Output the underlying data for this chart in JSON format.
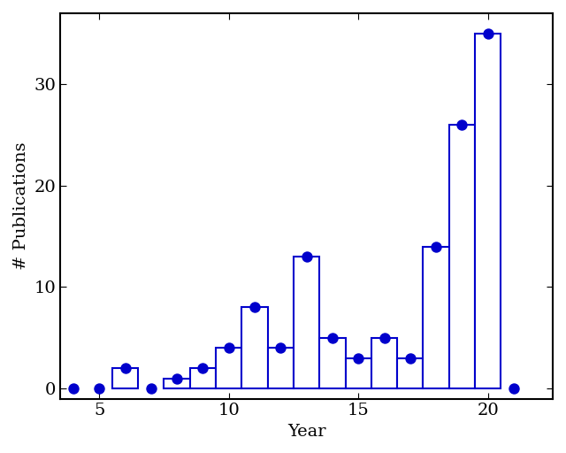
{
  "years": [
    4,
    5,
    6,
    7,
    8,
    9,
    10,
    11,
    12,
    13,
    14,
    15,
    16,
    17,
    18,
    19,
    20,
    21
  ],
  "values": [
    0,
    0,
    2,
    0,
    1,
    2,
    4,
    8,
    4,
    13,
    5,
    3,
    5,
    3,
    14,
    26,
    35,
    0
  ],
  "color": "#0000CC",
  "xlabel": "Year",
  "ylabel": "# Publications",
  "xlim": [
    3.5,
    22.5
  ],
  "ylim": [
    -1,
    37
  ],
  "xticks": [
    5,
    10,
    15,
    20
  ],
  "yticks": [
    0,
    10,
    20,
    30
  ],
  "dot_size": 80,
  "linewidth": 1.5,
  "font_size": 14
}
